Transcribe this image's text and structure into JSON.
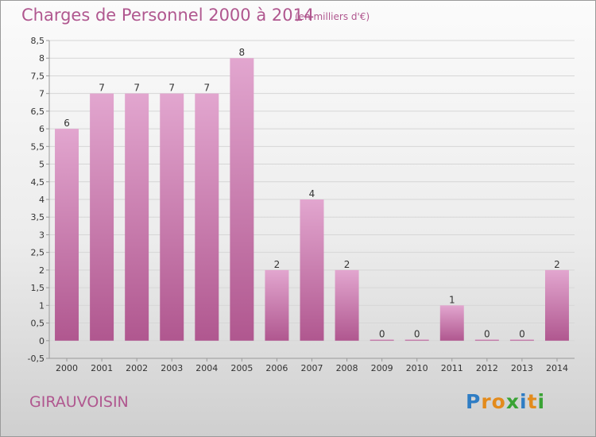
{
  "header": {
    "title": "Charges de Personnel 2000 à 2014",
    "subtitle": "(en milliers d'€)"
  },
  "footer": {
    "commune": "GIRAUVOISIN",
    "logo_letters": [
      "P",
      "r",
      "o",
      "x",
      "i",
      "t",
      "i"
    ],
    "logo_colors": [
      "#2f7dc4",
      "#e38b1c",
      "#e38b1c",
      "#3aa335",
      "#2f7dc4",
      "#e38b1c",
      "#3aa335"
    ]
  },
  "colors": {
    "title": "#b0578f",
    "bar_top": "#e2a6cf",
    "bar_bottom": "#b0578f",
    "grid": "#d6d6d6",
    "axis": "#9a9a9a"
  },
  "chart_data": {
    "type": "bar",
    "title": "Charges de Personnel 2000 à 2014",
    "subtitle": "(en milliers d'€)",
    "xlabel": "",
    "ylabel": "",
    "categories": [
      "2000",
      "2001",
      "2002",
      "2003",
      "2004",
      "2005",
      "2006",
      "2007",
      "2008",
      "2009",
      "2010",
      "2011",
      "2012",
      "2013",
      "2014"
    ],
    "values": [
      6,
      7,
      7,
      7,
      7,
      8,
      2,
      4,
      2,
      0,
      0,
      1,
      0,
      0,
      2
    ],
    "ylim": [
      -0.5,
      8.5
    ],
    "yticks": [
      "-0,5",
      "0",
      "0,5",
      "1",
      "1,5",
      "2",
      "2,5",
      "3",
      "3,5",
      "4",
      "4,5",
      "5",
      "5,5",
      "6",
      "6,5",
      "7",
      "7,5",
      "8",
      "8,5"
    ],
    "ytick_values": [
      -0.5,
      0,
      0.5,
      1,
      1.5,
      2,
      2.5,
      3,
      3.5,
      4,
      4.5,
      5,
      5.5,
      6,
      6.5,
      7,
      7.5,
      8,
      8.5
    ],
    "grid": true,
    "legend": "none"
  }
}
